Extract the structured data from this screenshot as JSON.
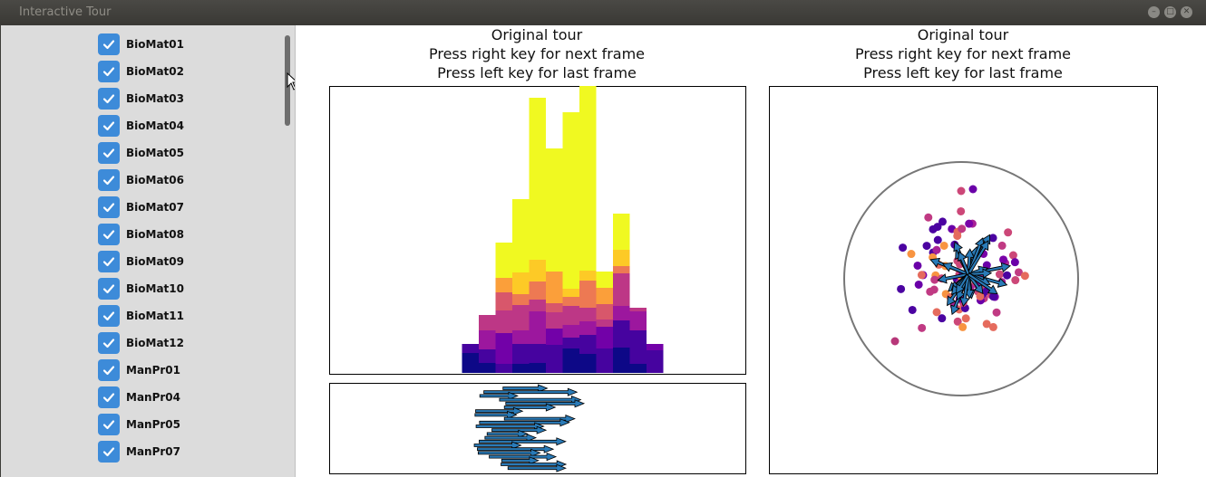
{
  "window": {
    "title": "Interactive Tour"
  },
  "sidebar": {
    "items": [
      {
        "label": "BioMat01",
        "checked": true
      },
      {
        "label": "BioMat02",
        "checked": true
      },
      {
        "label": "BioMat03",
        "checked": true
      },
      {
        "label": "BioMat04",
        "checked": true
      },
      {
        "label": "BioMat05",
        "checked": true
      },
      {
        "label": "BioMat06",
        "checked": true
      },
      {
        "label": "BioMat07",
        "checked": true
      },
      {
        "label": "BioMat08",
        "checked": true
      },
      {
        "label": "BioMat09",
        "checked": true
      },
      {
        "label": "BioMat10",
        "checked": true
      },
      {
        "label": "BioMat11",
        "checked": true
      },
      {
        "label": "BioMat12",
        "checked": true
      },
      {
        "label": "ManPr01",
        "checked": true
      },
      {
        "label": "ManPr04",
        "checked": true
      },
      {
        "label": "ManPr05",
        "checked": true
      },
      {
        "label": "ManPr07",
        "checked": true
      }
    ]
  },
  "left_panel": {
    "title_lines": [
      "Original tour",
      "Press right key for next frame",
      "Press left key for last frame"
    ]
  },
  "right_panel": {
    "title_lines": [
      "Original tour",
      "Press right key for next frame",
      "Press left key for last frame"
    ]
  },
  "colors": {
    "checkbox": "#3d8bd9",
    "arrow": "#2a7bb8",
    "circle": "#777777",
    "label_gray": "#c8c8c8"
  }
}
